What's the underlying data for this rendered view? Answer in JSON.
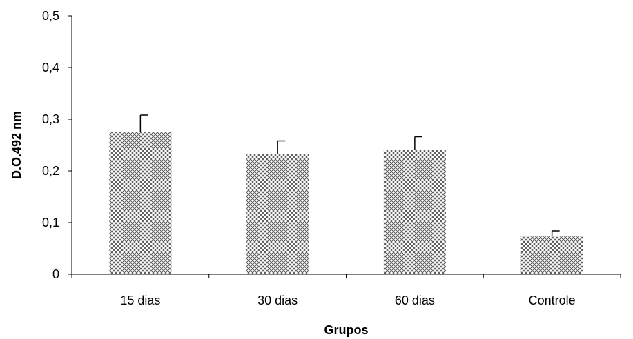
{
  "chart_data": {
    "type": "bar",
    "title": "",
    "xlabel": "Grupos",
    "ylabel": "D.O.492 nm",
    "categories": [
      "15 dias",
      "30 dias",
      "60 dias",
      "Controle"
    ],
    "values": [
      0.275,
      0.232,
      0.24,
      0.073
    ],
    "error_upper": [
      0.033,
      0.026,
      0.026,
      0.011
    ],
    "ylim": [
      0,
      0.5
    ],
    "yticks": [
      "0",
      "0,1",
      "0,2",
      "0,3",
      "0,4",
      "0,5"
    ],
    "grid": false,
    "legend": "none",
    "bar_pattern": "crosshatch",
    "colors": {
      "bar_fill": "#ffffff",
      "pattern_stroke": "#555555",
      "axis": "#000000"
    }
  }
}
